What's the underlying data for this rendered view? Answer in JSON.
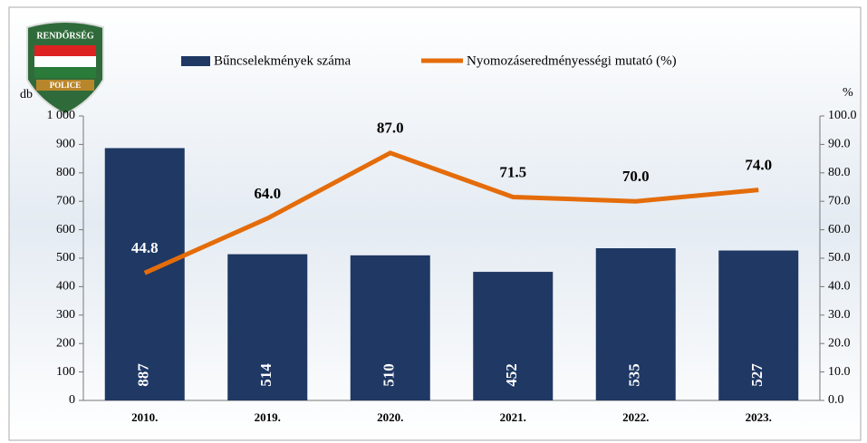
{
  "logo": {
    "top": "RENDŐRSÉG",
    "bottom": "POLICE"
  },
  "chart_data": {
    "type": "combo",
    "categories": [
      "2010.",
      "2019.",
      "2020.",
      "2021.",
      "2022.",
      "2023."
    ],
    "y_label": "db",
    "y2_label": "%",
    "series": [
      {
        "name": "Bűncselekmények száma",
        "type": "bar",
        "color": "#1f3864",
        "values": [
          887,
          514,
          510,
          452,
          535,
          527
        ]
      },
      {
        "name": "Nyomozáseredményességi mutató (%)",
        "type": "line",
        "axis": "y2",
        "color": "#e46c0a",
        "values": [
          44.8,
          64.0,
          87.0,
          71.5,
          70.0,
          74.0
        ],
        "value_labels": [
          "44.8",
          "64.0",
          "87.0",
          "71.5",
          "70.0",
          "74.0"
        ]
      }
    ],
    "ylim": [
      0,
      1000
    ],
    "yticks": [
      0,
      100,
      200,
      300,
      400,
      500,
      600,
      700,
      800,
      900,
      {
        "value": 1000,
        "label": "1 000"
      }
    ],
    "y2lim": [
      0,
      100
    ],
    "y2ticks": [
      {
        "value": 0,
        "label": "0.0"
      },
      {
        "value": 10,
        "label": "10.0"
      },
      {
        "value": 20,
        "label": "20.0"
      },
      {
        "value": 30,
        "label": "30.0"
      },
      {
        "value": 40,
        "label": "40.0"
      },
      {
        "value": 50,
        "label": "50.0"
      },
      {
        "value": 60,
        "label": "60.0"
      },
      {
        "value": 70,
        "label": "70.0"
      },
      {
        "value": 80,
        "label": "80.0"
      },
      {
        "value": 90,
        "label": "90.0"
      },
      {
        "value": 100,
        "label": "100.0"
      }
    ],
    "legend": "top"
  }
}
